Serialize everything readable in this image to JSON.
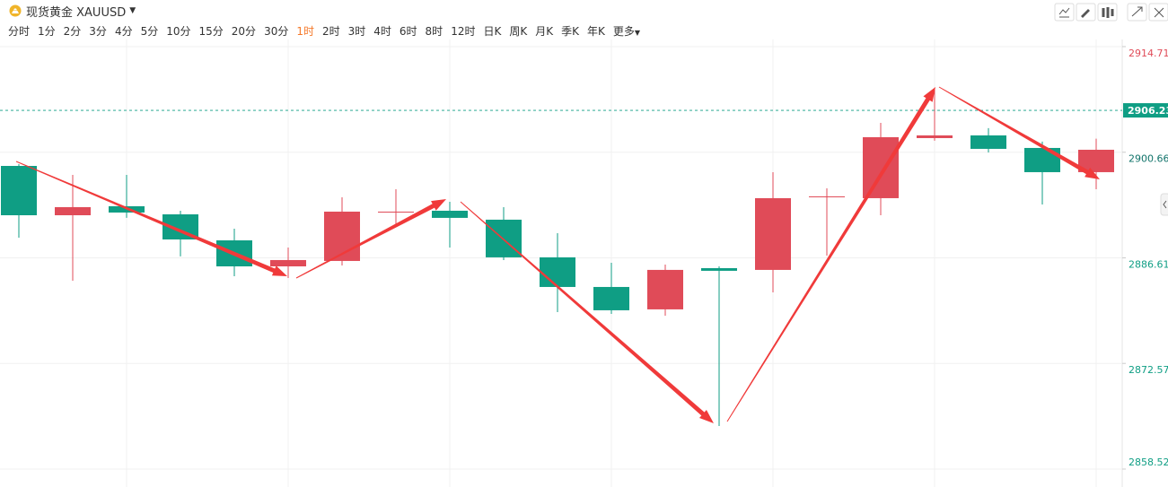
{
  "header": {
    "symbol": "现货黄金 XAUUSD",
    "periods": [
      "分时",
      "1分",
      "2分",
      "3分",
      "4分",
      "5分",
      "10分",
      "15分",
      "20分",
      "30分",
      "1时",
      "2时",
      "3时",
      "4时",
      "6时",
      "8时",
      "12时",
      "日K",
      "周K",
      "月K",
      "季K",
      "年K",
      "更多"
    ],
    "active_period": 10
  },
  "chart_data": {
    "type": "candlestick",
    "open": [
      2898.84,
      2892.28,
      2893.48,
      2892.4,
      2888.94,
      2885.48,
      2886.2,
      2892.64,
      2892.88,
      2891.69,
      2886.68,
      2882.74,
      2879.76,
      2885.24,
      2885.01,
      2894.67,
      2894.55,
      2902.54,
      2902.9,
      2901.23,
      2898.01
    ],
    "high": [
      2899.08,
      2897.65,
      2897.65,
      2892.88,
      2890.49,
      2887.99,
      2894.67,
      2895.74,
      2894.07,
      2893.36,
      2889.9,
      2885.96,
      2885.72,
      2885.48,
      2898.01,
      2895.86,
      2904.57,
      2908.99,
      2903.86,
      2902.07,
      2902.47
    ],
    "low": [
      2889.3,
      2883.57,
      2891.93,
      2886.8,
      2884.17,
      2883.93,
      2885.6,
      2891.09,
      2887.99,
      2886.32,
      2879.4,
      2879.16,
      2878.92,
      2864.25,
      2882.02,
      2886.91,
      2892.28,
      2902.19,
      2900.63,
      2893.71,
      2895.74
    ],
    "close": [
      2892.28,
      2893.36,
      2892.64,
      2889.06,
      2885.48,
      2886.32,
      2892.76,
      2892.76,
      2891.93,
      2886.68,
      2882.74,
      2879.64,
      2885.01,
      2884.89,
      2894.55,
      2894.79,
      2902.66,
      2902.9,
      2901.11,
      2898.01,
      2900.99
    ],
    "up_color": "#e04b58",
    "down_color": "#0f9e84",
    "ylim": [
      2858.52,
      2915.66
    ],
    "yticks": [
      2858.52,
      2872.57,
      2886.61,
      2900.66,
      2914.71
    ],
    "current_price": 2906.23,
    "grid": true
  }
}
